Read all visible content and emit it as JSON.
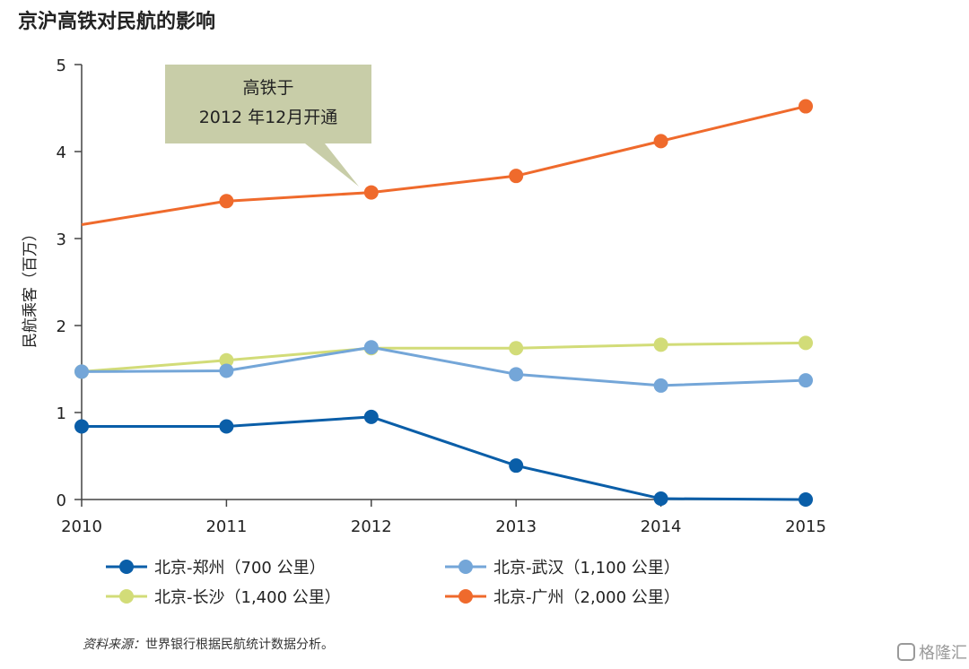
{
  "chart_data": {
    "type": "line",
    "title": "京沪高铁对民航的影响",
    "ylabel": "民航乘客（百万）",
    "xlabel": "",
    "x": [
      "2010",
      "2011",
      "2012",
      "2013",
      "2014",
      "2015"
    ],
    "yticks": [
      "0",
      "1",
      "2",
      "3",
      "4",
      "5"
    ],
    "ylim": [
      0,
      5
    ],
    "grid": false,
    "legend_position": "bottom",
    "series": [
      {
        "name": "北京-郑州（700 公里）",
        "color": "#0a5ea8",
        "values": [
          0.84,
          0.84,
          0.95,
          0.39,
          0.01,
          0.0
        ]
      },
      {
        "name": "北京-武汉（1,100 公里）",
        "color": "#74a6d8",
        "values": [
          1.47,
          1.48,
          1.75,
          1.44,
          1.31,
          1.37
        ]
      },
      {
        "name": "北京-长沙（1,400 公里）",
        "color": "#d2dc78",
        "values": [
          1.47,
          1.6,
          1.74,
          1.74,
          1.78,
          1.8
        ]
      },
      {
        "name": "北京-广州（2,000 公里）",
        "color": "#ef6a2c",
        "values": [
          3.16,
          3.43,
          3.53,
          3.72,
          4.12,
          4.52
        ]
      }
    ],
    "annotation": {
      "line1": "高铁于",
      "line2": "2012 年12月开通",
      "x": "2012",
      "y": 3.53
    },
    "source_label": "资料来源：",
    "source_text": "世界银行根据民航统计数据分析。"
  },
  "watermark": "格隆汇"
}
